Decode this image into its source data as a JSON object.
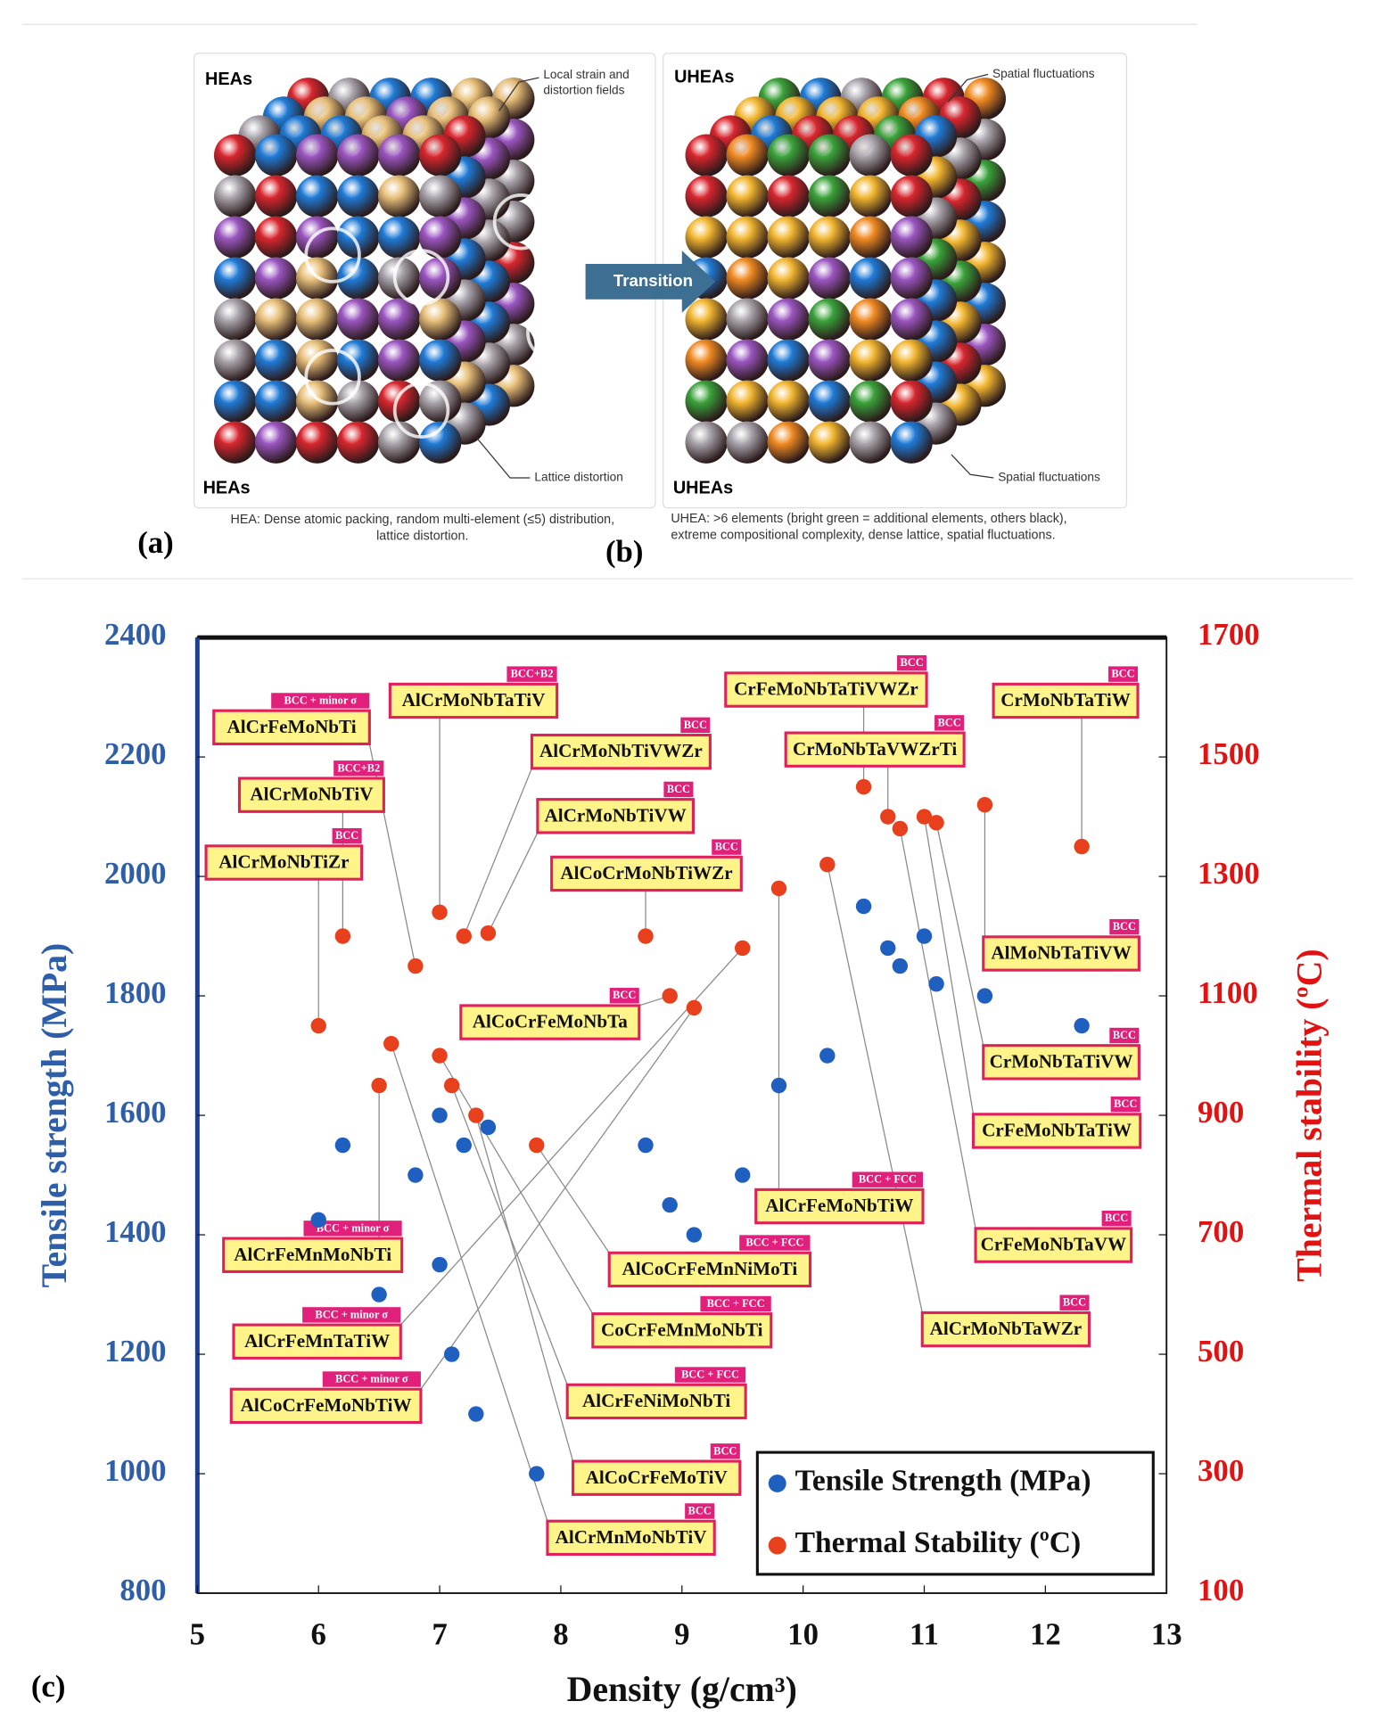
{
  "figure": {
    "panel_a": {
      "title": "HEAs",
      "callout_top": [
        "Local strain and",
        "distortion fields"
      ],
      "bottom_title": "HEAs",
      "callout_bottom": "Lattice distortion",
      "caption": [
        "HEA: Dense atomic packing, random multi-element (≤5) distribution,",
        "lattice distortion."
      ],
      "tag": "(a)"
    },
    "panel_b": {
      "title": "UHEAs",
      "callout_top": "Spatial fluctuations",
      "bottom_title": "UHEAs",
      "callout_bottom": "Spatial fluctuations",
      "caption": [
        "UHEA: >6 elements (bright green = additional elements, others black),",
        "extreme compositional complexity, dense lattice, spatial fluctuations."
      ],
      "tag": "(b)"
    },
    "transition": "Transition",
    "panel_c_tag": "(c)"
  },
  "chart_data": {
    "type": "scatter",
    "xlabel": "Density (g/cm³)",
    "ylabel": "Tensile strength (MPa)",
    "y2label": "Thermal stability (ºC)",
    "xlim": [
      5,
      13
    ],
    "xticks": [
      5,
      6,
      7,
      8,
      9,
      10,
      11,
      12,
      13
    ],
    "ylim": [
      800,
      2400
    ],
    "yticks": [
      800,
      1000,
      1200,
      1400,
      1600,
      1800,
      2000,
      2200,
      2400
    ],
    "y2lim": [
      100,
      1700
    ],
    "y2ticks": [
      100,
      300,
      500,
      700,
      900,
      1100,
      1300,
      1500,
      1700
    ],
    "legend": "lower right",
    "series": [
      {
        "name": "Tensile Strength (MPa)",
        "color": "#1f5fc0",
        "x": [
          6.0,
          6.2,
          6.5,
          6.8,
          7.0,
          7.0,
          7.1,
          7.2,
          7.3,
          7.4,
          7.8,
          8.7,
          8.9,
          9.1,
          9.5,
          9.8,
          10.2,
          10.5,
          10.7,
          10.8,
          11.0,
          11.1,
          11.5,
          12.3
        ],
        "values": [
          1425,
          1550,
          1300,
          1500,
          1600,
          1350,
          1200,
          1550,
          1100,
          1580,
          1000,
          1550,
          1450,
          1400,
          1500,
          1650,
          1700,
          1950,
          1880,
          1850,
          1900,
          1820,
          1800,
          1750
        ]
      },
      {
        "name": "Thermal Stability (ºC)",
        "color": "#e8401c",
        "axis": "y2",
        "x": [
          6.0,
          6.2,
          6.5,
          6.6,
          6.8,
          7.0,
          7.0,
          7.1,
          7.2,
          7.3,
          7.4,
          7.8,
          8.7,
          8.9,
          9.1,
          9.5,
          9.8,
          10.2,
          10.5,
          10.7,
          10.8,
          11.0,
          11.1,
          11.5,
          12.3
        ],
        "values": [
          1050,
          1200,
          950,
          1020,
          1150,
          1240,
          1000,
          950,
          1200,
          900,
          1205,
          850,
          1200,
          1100,
          1080,
          1180,
          1280,
          1320,
          1450,
          1400,
          1380,
          1400,
          1390,
          1420,
          1350
        ],
        "alloys": [
          "AlCrMoNbTiZr",
          "AlCrMoNbTiV",
          "AlCrFeMnMoNbTi",
          "AlCrMnMoNbTiV",
          "AlCrFeMoNbTi",
          "AlCrMoNbTaTiV",
          "CoCrFeMnMoNbTi",
          "AlCrFeNiMoNbTi",
          "AlCrMoNbTiVWZr",
          "AlCoCrFeMoTiV",
          "AlCrMoNbTiVW",
          "AlCoCrFeMnNiMoTi",
          "AlCoCrMoNbTiWZr",
          "AlCoCrFeMoNbTa",
          "AlCoCrFeMoNbTiW",
          "AlCrFeMnTaTiW",
          "AlCrFeMoNbTiW",
          "AlCrMoNbTaWZr",
          "CrFeMoNbTaTiVWZr",
          "CrMoNbTaVWZrTi",
          "CrFeMoNbTaVW",
          "CrFeMoNbTaTiW",
          "CrMoNbTaTiVW",
          "AlMoNbTaTiVW",
          "CrMoNbTaTiW"
        ],
        "phases": [
          "BCC",
          "BCC+B2",
          "BCC + minor σ",
          "BCC",
          "BCC + minor σ",
          "BCC+B2",
          "BCC + FCC",
          "BCC + FCC",
          "BCC",
          "BCC",
          "BCC",
          "BCC + FCC",
          "BCC",
          "BCC",
          "BCC + minor σ",
          "BCC + minor σ",
          "BCC + FCC",
          "BCC",
          "BCC",
          "BCC",
          "BCC",
          "BCC",
          "BCC",
          "BCC",
          "BCC"
        ]
      }
    ]
  }
}
